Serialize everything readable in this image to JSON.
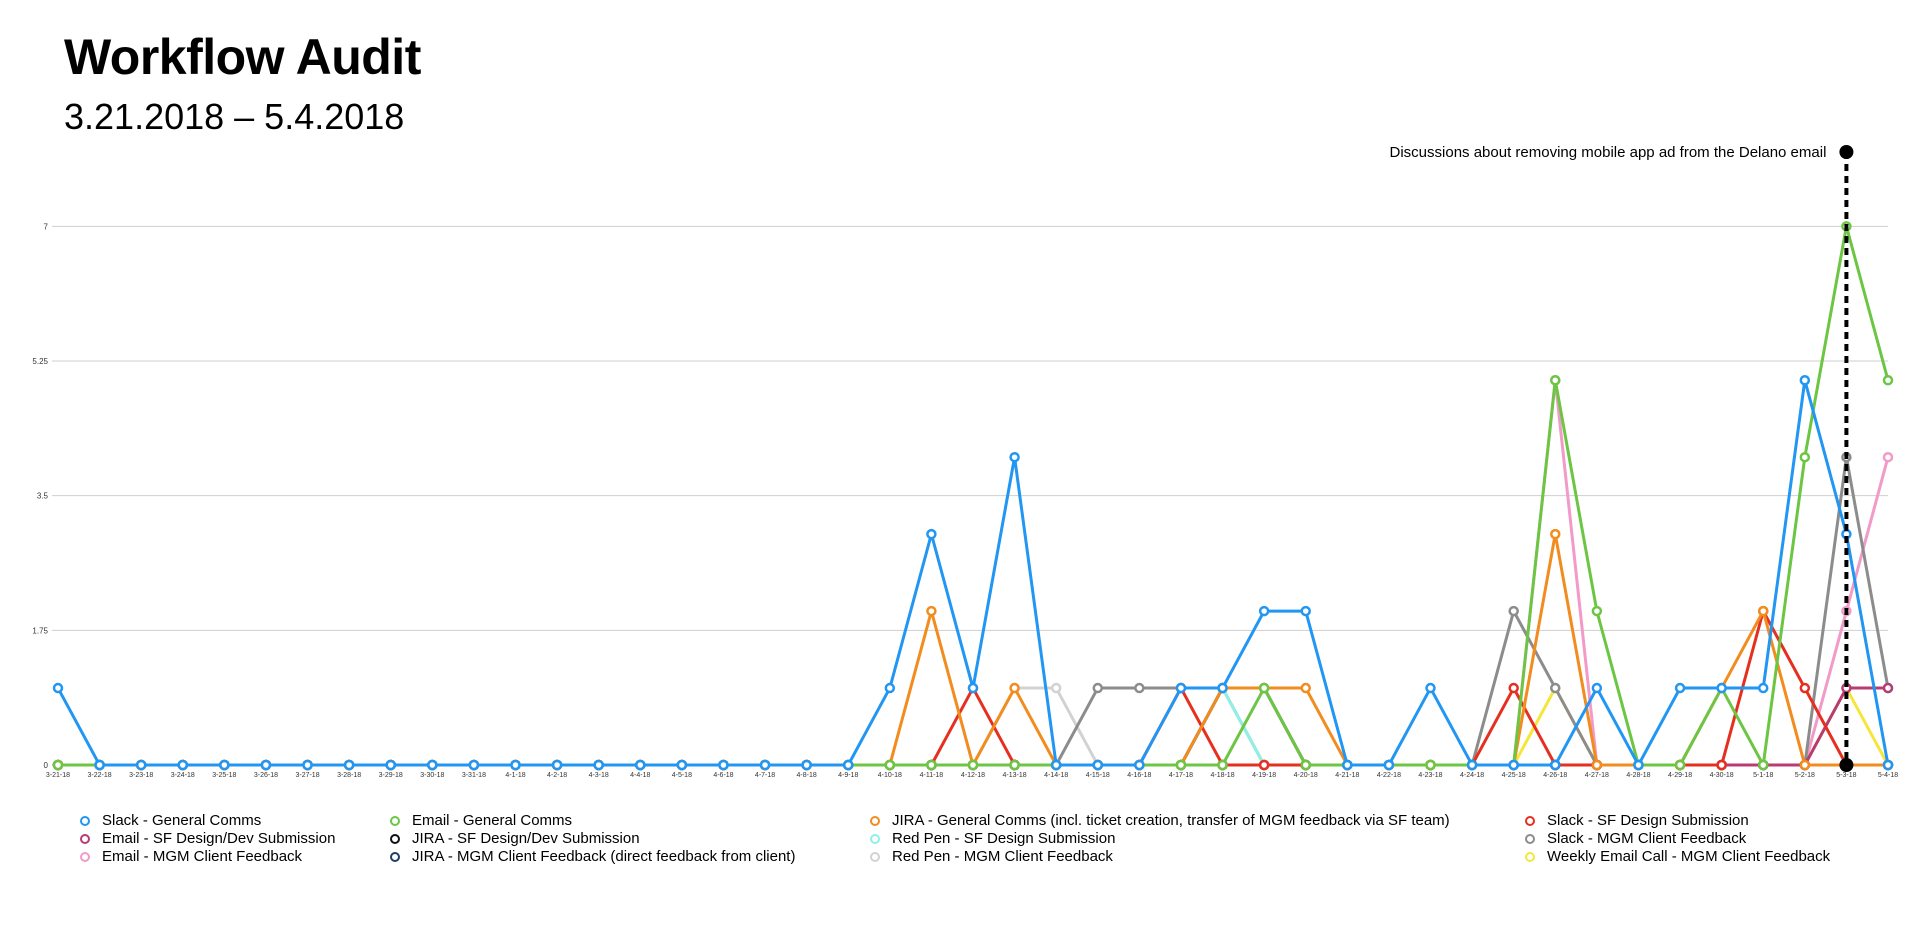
{
  "header": {
    "title": "Workflow Audit",
    "subtitle": "3.21.2018 – 5.4.2018"
  },
  "chart_data": {
    "type": "line",
    "title": "Workflow Audit",
    "subtitle": "3.21.2018 – 5.4.2018",
    "xlabel": "",
    "ylabel": "",
    "ylim": [
      0,
      8.2
    ],
    "yticks": [
      "0",
      "1.75",
      "3.5",
      "5.25",
      "7"
    ],
    "grid": true,
    "legend_position": "bottom",
    "categories": [
      "3-21-18",
      "3-22-18",
      "3-23-18",
      "3-24-18",
      "3-25-18",
      "3-26-18",
      "3-27-18",
      "3-28-18",
      "3-29-18",
      "3-30-18",
      "3-31-18",
      "4-1-18",
      "4-2-18",
      "4-3-18",
      "4-4-18",
      "4-5-18",
      "4-6-18",
      "4-7-18",
      "4-8-18",
      "4-9-18",
      "4-10-18",
      "4-11-18",
      "4-12-18",
      "4-13-18",
      "4-14-18",
      "4-15-18",
      "4-16-18",
      "4-17-18",
      "4-18-18",
      "4-19-18",
      "4-20-18",
      "4-21-18",
      "4-22-18",
      "4-23-18",
      "4-24-18",
      "4-25-18",
      "4-26-18",
      "4-27-18",
      "4-28-18",
      "4-29-18",
      "4-30-18",
      "5-1-18",
      "5-2-18",
      "5-3-18",
      "5-4-18"
    ],
    "annotation": {
      "text": "Discussions about removing mobile app ad from the Delano email",
      "category": "5-3-18"
    },
    "series": [
      {
        "name": "Slack - General Comms",
        "color": "#2196f3",
        "values": [
          1,
          0,
          0,
          0,
          0,
          0,
          0,
          0,
          0,
          0,
          0,
          0,
          0,
          0,
          0,
          0,
          0,
          0,
          0,
          0,
          1,
          3,
          1,
          4,
          0,
          0,
          0,
          1,
          1,
          2,
          2,
          0,
          0,
          1,
          0,
          0,
          0,
          1,
          0,
          1,
          1,
          1,
          5,
          3,
          0
        ]
      },
      {
        "name": "Email - General Comms",
        "color": "#6cc644",
        "values": [
          0,
          0,
          0,
          0,
          0,
          0,
          0,
          0,
          0,
          0,
          0,
          0,
          0,
          0,
          0,
          0,
          0,
          0,
          0,
          0,
          0,
          0,
          0,
          0,
          0,
          0,
          0,
          0,
          0,
          1,
          0,
          0,
          0,
          0,
          0,
          0,
          5,
          2,
          0,
          0,
          1,
          0,
          4,
          7,
          5
        ]
      },
      {
        "name": "JIRA - General Comms (incl. ticket creation, transfer of MGM feedback via SF team)",
        "color": "#f28c1e",
        "values": [
          0,
          0,
          0,
          0,
          0,
          0,
          0,
          0,
          0,
          0,
          0,
          0,
          0,
          0,
          0,
          0,
          0,
          0,
          0,
          0,
          0,
          2,
          0,
          1,
          0,
          0,
          0,
          0,
          1,
          1,
          1,
          0,
          0,
          0,
          0,
          0,
          3,
          0,
          0,
          0,
          1,
          2,
          0,
          0,
          0
        ]
      },
      {
        "name": "Slack - SF Design Submission",
        "color": "#e53020",
        "values": [
          0,
          0,
          0,
          0,
          0,
          0,
          0,
          0,
          0,
          0,
          0,
          0,
          0,
          0,
          0,
          0,
          0,
          0,
          0,
          0,
          0,
          0,
          1,
          0,
          0,
          0,
          0,
          1,
          0,
          0,
          0,
          0,
          0,
          0,
          0,
          1,
          0,
          0,
          0,
          0,
          0,
          2,
          1,
          0,
          0
        ]
      },
      {
        "name": "Email - SF Design/Dev Submission",
        "color": "#b83c72",
        "values": [
          0,
          0,
          0,
          0,
          0,
          0,
          0,
          0,
          0,
          0,
          0,
          0,
          0,
          0,
          0,
          0,
          0,
          0,
          0,
          0,
          0,
          0,
          0,
          0,
          0,
          0,
          0,
          0,
          0,
          0,
          0,
          0,
          0,
          0,
          0,
          0,
          0,
          0,
          0,
          0,
          0,
          0,
          0,
          1,
          1
        ]
      },
      {
        "name": "JIRA - SF Design/Dev Submission",
        "color": "#111111",
        "values": [
          0,
          0,
          0,
          0,
          0,
          0,
          0,
          0,
          0,
          0,
          0,
          0,
          0,
          0,
          0,
          0,
          0,
          0,
          0,
          0,
          0,
          0,
          0,
          0,
          0,
          0,
          0,
          0,
          1,
          1,
          0,
          0,
          0,
          0,
          0,
          0,
          0,
          0,
          0,
          0,
          0,
          0,
          0,
          0,
          0
        ]
      },
      {
        "name": "Red Pen - SF Design Submission",
        "color": "#8ff0e8",
        "values": [
          0,
          0,
          0,
          0,
          0,
          0,
          0,
          0,
          0,
          0,
          0,
          0,
          0,
          0,
          0,
          0,
          0,
          0,
          0,
          0,
          0,
          0,
          0,
          0,
          0,
          0,
          0,
          0,
          1,
          0,
          0,
          0,
          0,
          0,
          0,
          0,
          0,
          0,
          0,
          0,
          0,
          0,
          0,
          0,
          0
        ]
      },
      {
        "name": "Slack - MGM Client Feedback",
        "color": "#8c8c8c",
        "values": [
          0,
          0,
          0,
          0,
          0,
          0,
          0,
          0,
          0,
          0,
          0,
          0,
          0,
          0,
          0,
          0,
          0,
          0,
          0,
          0,
          0,
          0,
          0,
          0,
          0,
          1,
          1,
          1,
          1,
          0,
          0,
          0,
          0,
          0,
          0,
          2,
          1,
          0,
          0,
          0,
          0,
          0,
          0,
          4,
          1
        ]
      },
      {
        "name": "Email - MGM Client Feedback",
        "color": "#f29ac8",
        "values": [
          0,
          0,
          0,
          0,
          0,
          0,
          0,
          0,
          0,
          0,
          0,
          0,
          0,
          0,
          0,
          0,
          0,
          0,
          0,
          0,
          0,
          0,
          0,
          0,
          0,
          0,
          0,
          0,
          0,
          0,
          0,
          0,
          0,
          0,
          0,
          0,
          5,
          0,
          0,
          0,
          0,
          0,
          0,
          2,
          4
        ]
      },
      {
        "name": "JIRA - MGM Client Feedback (direct feedback from client)",
        "color": "#1c3f66",
        "values": [
          0,
          0,
          0,
          0,
          0,
          0,
          0,
          0,
          0,
          0,
          0,
          0,
          0,
          0,
          0,
          0,
          0,
          0,
          0,
          0,
          0,
          0,
          0,
          0,
          0,
          0,
          0,
          0,
          0,
          0,
          0,
          0,
          0,
          0,
          0,
          0,
          0,
          0,
          0,
          0,
          0,
          0,
          0,
          0,
          0
        ]
      },
      {
        "name": "Red Pen - MGM Client Feedback",
        "color": "#d2d2d2",
        "values": [
          0,
          0,
          0,
          0,
          0,
          0,
          0,
          0,
          0,
          0,
          0,
          0,
          0,
          0,
          0,
          0,
          0,
          0,
          0,
          0,
          0,
          0,
          0,
          1,
          1,
          0,
          0,
          0,
          0,
          0,
          0,
          0,
          0,
          0,
          0,
          0,
          0,
          0,
          0,
          0,
          0,
          0,
          0,
          0,
          0
        ]
      },
      {
        "name": "Weekly Email Call - MGM Client Feedback",
        "color": "#f5e63c",
        "values": [
          0,
          0,
          0,
          0,
          0,
          0,
          0,
          0,
          0,
          0,
          0,
          0,
          0,
          0,
          0,
          0,
          0,
          0,
          0,
          0,
          0,
          0,
          0,
          0,
          0,
          0,
          0,
          0,
          0,
          0,
          0,
          0,
          0,
          0,
          0,
          0,
          1,
          0,
          0,
          0,
          0,
          0,
          0,
          1,
          0
        ]
      }
    ]
  }
}
